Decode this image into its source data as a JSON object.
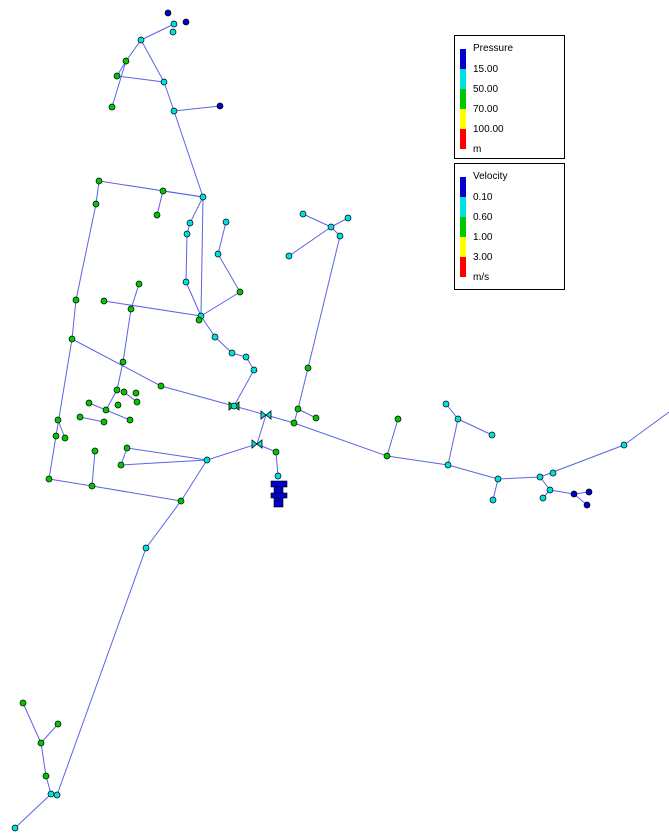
{
  "colors": {
    "pipe": "#5a64e6",
    "node_outline": "#000000"
  },
  "legends": {
    "pressure": {
      "title": "Pressure",
      "unit": "m",
      "breaks": [
        "15.00",
        "50.00",
        "70.00",
        "100.00"
      ],
      "colors": [
        "#0000c8",
        "#00e0e0",
        "#00c800",
        "#ffff00",
        "#ff0000"
      ]
    },
    "velocity": {
      "title": "Velocity",
      "unit": "m/s",
      "breaks": [
        "0.10",
        "0.60",
        "1.00",
        "3.00"
      ],
      "colors": [
        "#0000c8",
        "#00e0e0",
        "#00c800",
        "#ffff00",
        "#ff0000"
      ]
    }
  },
  "network": {
    "nodes": [
      [
        "n1",
        168,
        13,
        "blue"
      ],
      [
        "n2",
        186,
        22,
        "blue"
      ],
      [
        "n3",
        174,
        24,
        "cyan"
      ],
      [
        "n4",
        173,
        32,
        "cyan"
      ],
      [
        "n5",
        141,
        40,
        "cyan"
      ],
      [
        "n6",
        126,
        61,
        "green"
      ],
      [
        "n7",
        117,
        76,
        "green"
      ],
      [
        "n8",
        112,
        107,
        "green"
      ],
      [
        "n9",
        164,
        82,
        "cyan"
      ],
      [
        "n10",
        174,
        111,
        "cyan"
      ],
      [
        "n11",
        220,
        106,
        "blue"
      ],
      [
        "n12",
        99,
        181,
        "green"
      ],
      [
        "n13",
        163,
        191,
        "green"
      ],
      [
        "n14",
        96,
        204,
        "green"
      ],
      [
        "n15",
        157,
        215,
        "green"
      ],
      [
        "n16",
        203,
        197,
        "cyan"
      ],
      [
        "n17",
        190,
        223,
        "cyan"
      ],
      [
        "n18",
        226,
        222,
        "cyan"
      ],
      [
        "n19",
        187,
        234,
        "cyan"
      ],
      [
        "n20",
        218,
        254,
        "cyan"
      ],
      [
        "n21",
        186,
        282,
        "cyan"
      ],
      [
        "n22",
        240,
        292,
        "green"
      ],
      [
        "n23",
        303,
        214,
        "cyan"
      ],
      [
        "n24",
        331,
        227,
        "cyan"
      ],
      [
        "n25",
        348,
        218,
        "cyan"
      ],
      [
        "n26",
        340,
        236,
        "cyan"
      ],
      [
        "n27",
        289,
        256,
        "cyan"
      ],
      [
        "n28",
        76,
        300,
        "green"
      ],
      [
        "n29",
        104,
        301,
        "green"
      ],
      [
        "n30",
        139,
        284,
        "green"
      ],
      [
        "n31",
        131,
        309,
        "green"
      ],
      [
        "n32",
        201,
        316,
        "cyan"
      ],
      [
        "n33",
        199,
        320,
        "green"
      ],
      [
        "n34",
        72,
        339,
        "green"
      ],
      [
        "n35",
        215,
        337,
        "cyan"
      ],
      [
        "n36",
        232,
        353,
        "cyan"
      ],
      [
        "n37",
        246,
        357,
        "cyan"
      ],
      [
        "n38",
        254,
        370,
        "cyan"
      ],
      [
        "n39",
        123,
        362,
        "green"
      ],
      [
        "n40",
        161,
        386,
        "green"
      ],
      [
        "n41",
        117,
        390,
        "green"
      ],
      [
        "n42",
        124,
        392,
        "green"
      ],
      [
        "n43",
        136,
        393,
        "green"
      ],
      [
        "n44",
        89,
        403,
        "green"
      ],
      [
        "n45",
        137,
        402,
        "green"
      ],
      [
        "n46",
        118,
        405,
        "green"
      ],
      [
        "n47",
        106,
        410,
        "green"
      ],
      [
        "n48",
        80,
        417,
        "green"
      ],
      [
        "n49",
        130,
        420,
        "green"
      ],
      [
        "n50",
        58,
        420,
        "green"
      ],
      [
        "n51",
        104,
        422,
        "green"
      ],
      [
        "n52",
        234,
        406,
        "cyan"
      ],
      [
        "n53",
        308,
        368,
        "green"
      ],
      [
        "n54",
        298,
        409,
        "green"
      ],
      [
        "n55",
        316,
        418,
        "green"
      ],
      [
        "n56",
        294,
        423,
        "green"
      ],
      [
        "n57",
        56,
        436,
        "green"
      ],
      [
        "n58",
        65,
        438,
        "green"
      ],
      [
        "n59",
        127,
        448,
        "green"
      ],
      [
        "n60",
        95,
        451,
        "green"
      ],
      [
        "n61",
        207,
        460,
        "cyan"
      ],
      [
        "n62",
        121,
        465,
        "green"
      ],
      [
        "n63",
        49,
        479,
        "green"
      ],
      [
        "n64",
        92,
        486,
        "green"
      ],
      [
        "n65",
        276,
        452,
        "green"
      ],
      [
        "n66",
        278,
        476,
        "cyan"
      ],
      [
        "n67",
        181,
        501,
        "green"
      ],
      [
        "n68",
        146,
        548,
        "cyan"
      ],
      [
        "n69",
        398,
        419,
        "green"
      ],
      [
        "n70",
        387,
        456,
        "green"
      ],
      [
        "n71",
        446,
        404,
        "cyan"
      ],
      [
        "n72",
        458,
        419,
        "cyan"
      ],
      [
        "n73",
        492,
        435,
        "cyan"
      ],
      [
        "n74",
        448,
        465,
        "cyan"
      ],
      [
        "n75",
        498,
        479,
        "cyan"
      ],
      [
        "n76",
        493,
        500,
        "cyan"
      ],
      [
        "n77",
        540,
        477,
        "cyan"
      ],
      [
        "n78",
        553,
        473,
        "cyan"
      ],
      [
        "n79",
        624,
        445,
        "cyan"
      ],
      [
        "n80",
        550,
        490,
        "cyan"
      ],
      [
        "n81",
        543,
        498,
        "cyan"
      ],
      [
        "n82",
        574,
        494,
        "blue"
      ],
      [
        "n83",
        589,
        492,
        "blue"
      ],
      [
        "n84",
        587,
        505,
        "blue"
      ],
      [
        "n85",
        23,
        703,
        "green"
      ],
      [
        "n86",
        58,
        724,
        "green"
      ],
      [
        "n87",
        41,
        743,
        "green"
      ],
      [
        "n88",
        46,
        776,
        "green"
      ],
      [
        "n89",
        51,
        794,
        "cyan"
      ],
      [
        "n90",
        57,
        795,
        "cyan"
      ],
      [
        "n91",
        15,
        828,
        "cyan"
      ]
    ],
    "pipes": [
      [
        "n5",
        "n3"
      ],
      [
        "n5",
        "n9"
      ],
      [
        "n5",
        "n6"
      ],
      [
        "n6",
        "n7"
      ],
      [
        "n6",
        "n8"
      ],
      [
        "n7",
        "n9"
      ],
      [
        "n9",
        "n10"
      ],
      [
        "n10",
        "n11"
      ],
      [
        "n10",
        "n16"
      ],
      [
        "n12",
        "n16"
      ],
      [
        "n12",
        "n14"
      ],
      [
        "n13",
        "n15"
      ],
      [
        "n14",
        "n28"
      ],
      [
        "n28",
        "n34"
      ],
      [
        "n34",
        "n57"
      ],
      [
        "n57",
        "n63"
      ],
      [
        "n63",
        "n64"
      ],
      [
        "n64",
        "n67"
      ],
      [
        "n67",
        "n61"
      ],
      [
        "n61",
        "n59"
      ],
      [
        "n59",
        "n62"
      ],
      [
        "n61",
        "n66b"
      ],
      [
        "n67",
        "n68"
      ],
      [
        "n68",
        "n90"
      ],
      [
        "n90",
        "n89"
      ],
      [
        "n89",
        "n91"
      ],
      [
        "n88",
        "n89"
      ],
      [
        "n88",
        "n87"
      ],
      [
        "n87",
        "n85"
      ],
      [
        "n87",
        "n86"
      ],
      [
        "n16",
        "n17"
      ],
      [
        "n17",
        "n19"
      ],
      [
        "n19",
        "n21"
      ],
      [
        "n21",
        "n32"
      ],
      [
        "n16",
        "n32"
      ],
      [
        "n18",
        "n20"
      ],
      [
        "n20",
        "n22"
      ],
      [
        "n22",
        "n32"
      ],
      [
        "n32",
        "n35"
      ],
      [
        "n35",
        "n36"
      ],
      [
        "n36",
        "n37"
      ],
      [
        "n37",
        "n38"
      ],
      [
        "n38",
        "n52"
      ],
      [
        "n29",
        "n32"
      ],
      [
        "n30",
        "n31"
      ],
      [
        "n31",
        "n39"
      ],
      [
        "n39",
        "n41"
      ],
      [
        "n41",
        "n47"
      ],
      [
        "n34",
        "n40"
      ],
      [
        "n40",
        "n52"
      ],
      [
        "n52",
        "n65s"
      ],
      [
        "n65s",
        "n56"
      ],
      [
        "n56",
        "n70"
      ],
      [
        "n70",
        "n74"
      ],
      [
        "n74",
        "n75"
      ],
      [
        "n75",
        "n77"
      ],
      [
        "n77",
        "n79"
      ],
      [
        "n79",
        "edge"
      ],
      [
        "n70",
        "n69"
      ],
      [
        "n74",
        "n72"
      ],
      [
        "n72",
        "n71"
      ],
      [
        "n72",
        "n73"
      ],
      [
        "n75",
        "n76"
      ],
      [
        "n77",
        "n80"
      ],
      [
        "n80",
        "n81"
      ],
      [
        "n80",
        "n82"
      ],
      [
        "n82",
        "n83"
      ],
      [
        "n82",
        "n84"
      ],
      [
        "n56",
        "n54"
      ],
      [
        "n54",
        "n53"
      ],
      [
        "n53",
        "n26"
      ],
      [
        "n26",
        "n24"
      ],
      [
        "n24",
        "n23"
      ],
      [
        "n24",
        "n25"
      ],
      [
        "n24",
        "n27"
      ],
      [
        "n54",
        "n55"
      ],
      [
        "n65s",
        "n66b"
      ],
      [
        "n66b",
        "n65"
      ],
      [
        "n65",
        "n66"
      ],
      [
        "n60",
        "n64"
      ],
      [
        "n61",
        "n62"
      ],
      [
        "n44",
        "n49"
      ],
      [
        "n42",
        "n45"
      ],
      [
        "n48",
        "n51"
      ],
      [
        "n50",
        "n58"
      ],
      [
        "n13",
        "n16"
      ]
    ],
    "extra_points": [
      [
        "n66b",
        257,
        444
      ],
      [
        "n65s",
        266,
        415
      ],
      [
        "edge",
        669,
        412
      ]
    ],
    "valves": [
      [
        266,
        415
      ],
      [
        257,
        444
      ],
      [
        234,
        406
      ]
    ],
    "tank": [
      278,
      492
    ]
  }
}
